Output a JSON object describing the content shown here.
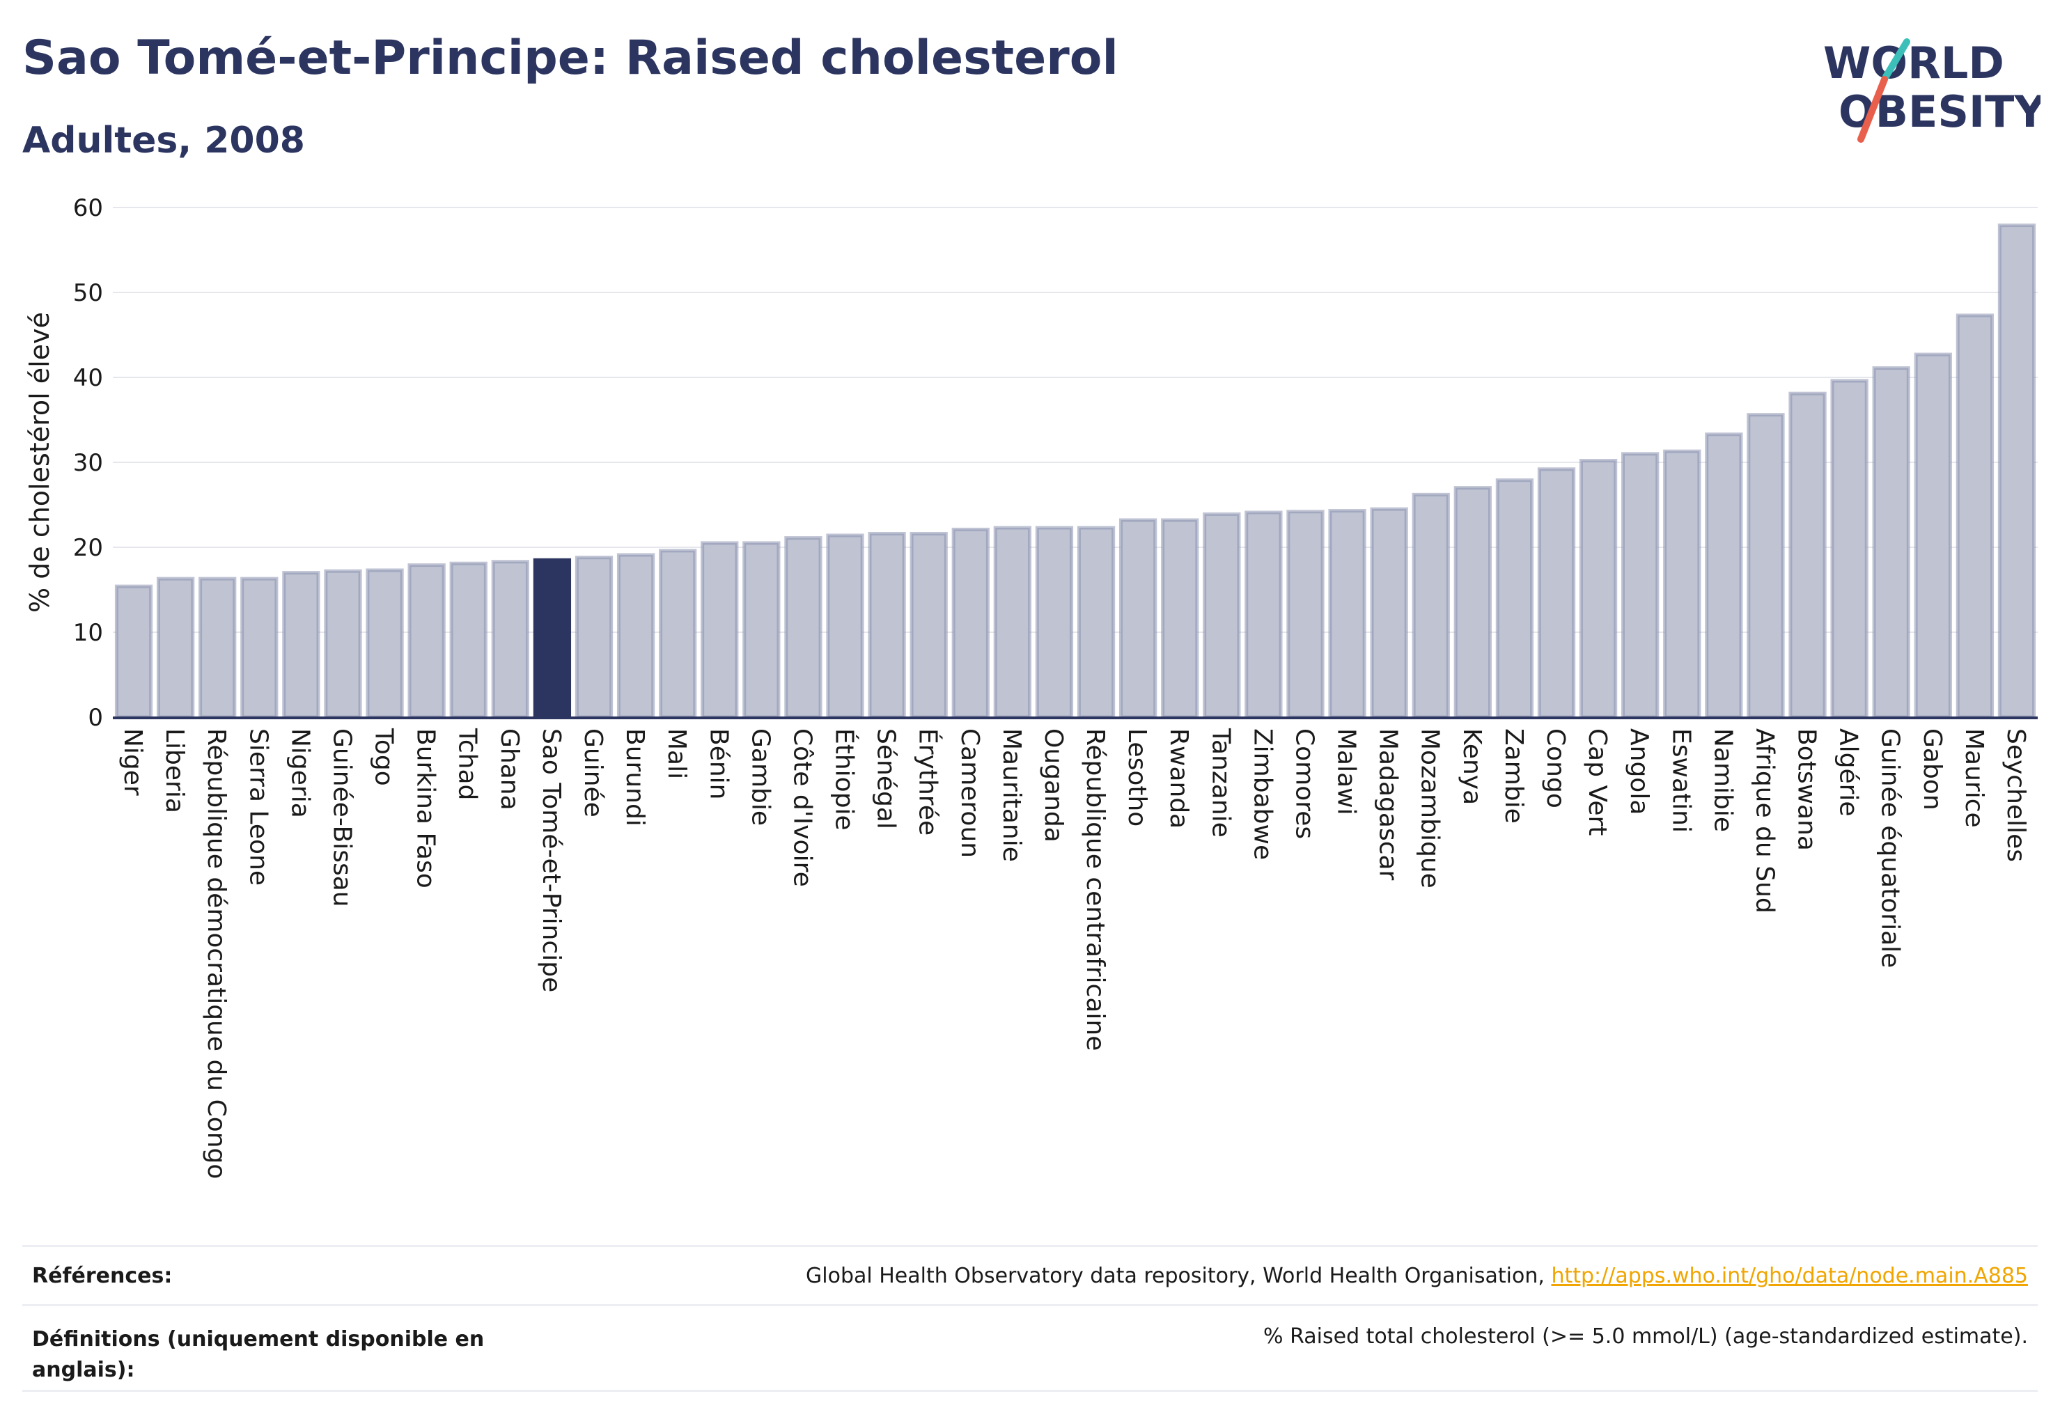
{
  "header": {
    "title": "Sao Tomé-et-Principe: Raised cholesterol",
    "subtitle": "Adultes, 2008"
  },
  "logo": {
    "line1": "WORLD",
    "line2": "OBESITY",
    "colors": {
      "text": "#2c3560",
      "slash_top": "#3bbfb8",
      "slash_bottom": "#e8604c"
    }
  },
  "colors": {
    "bar": "#bfc3d2",
    "bar_border": "#8a91ae",
    "highlight": "#2c3560",
    "axis": "#2c3560",
    "grid": "#e6e7ed"
  },
  "chart_data": {
    "type": "bar",
    "ylabel": "% de cholestérol élevé",
    "ylim": [
      0,
      60
    ],
    "yticks": [
      0,
      10,
      20,
      30,
      40,
      50,
      60
    ],
    "grid": true,
    "highlight": "Sao Tomé-et-Principe",
    "categories": [
      "Niger",
      "Liberia",
      "République démocratique du Congo",
      "Sierra Leone",
      "Nigeria",
      "Guinée-Bissau",
      "Togo",
      "Burkina Faso",
      "Tchad",
      "Ghana",
      "Sao Tomé-et-Principe",
      "Guinée",
      "Burundi",
      "Mali",
      "Bénin",
      "Gambie",
      "Côte d'Ivoire",
      "Éthiopie",
      "Sénégal",
      "Érythrée",
      "Cameroun",
      "Mauritanie",
      "Ouganda",
      "République centrafricaine",
      "Lesotho",
      "Rwanda",
      "Tanzanie",
      "Zimbabwe",
      "Comores",
      "Malawi",
      "Madagascar",
      "Mozambique",
      "Kenya",
      "Zambie",
      "Congo",
      "Cap Vert",
      "Angola",
      "Eswatini",
      "Namibie",
      "Afrique du Sud",
      "Botswana",
      "Algérie",
      "Guinée équatoriale",
      "Gabon",
      "Maurice",
      "Seychelles"
    ],
    "values": [
      15.4,
      16.3,
      16.3,
      16.3,
      17.0,
      17.2,
      17.3,
      17.9,
      18.1,
      18.3,
      18.5,
      18.8,
      19.1,
      19.6,
      20.5,
      20.5,
      21.1,
      21.4,
      21.6,
      21.6,
      22.1,
      22.3,
      22.3,
      22.3,
      23.2,
      23.2,
      23.9,
      24.1,
      24.2,
      24.3,
      24.5,
      26.2,
      27.0,
      27.9,
      29.2,
      30.2,
      31.0,
      31.3,
      33.3,
      35.6,
      38.1,
      39.6,
      41.1,
      42.7,
      47.3,
      57.9
    ]
  },
  "references": {
    "label": "Références:",
    "text": "Global Health Observatory data repository, World Health Organisation, ",
    "link": "http://apps.who.int/gho/data/node.main.A885"
  },
  "definitions": {
    "label_line1": "Définitions (uniquement disponible en",
    "label_line2": "anglais):",
    "text": "% Raised total cholesterol (>= 5.0 mmol/L) (age-standardized estimate)."
  }
}
